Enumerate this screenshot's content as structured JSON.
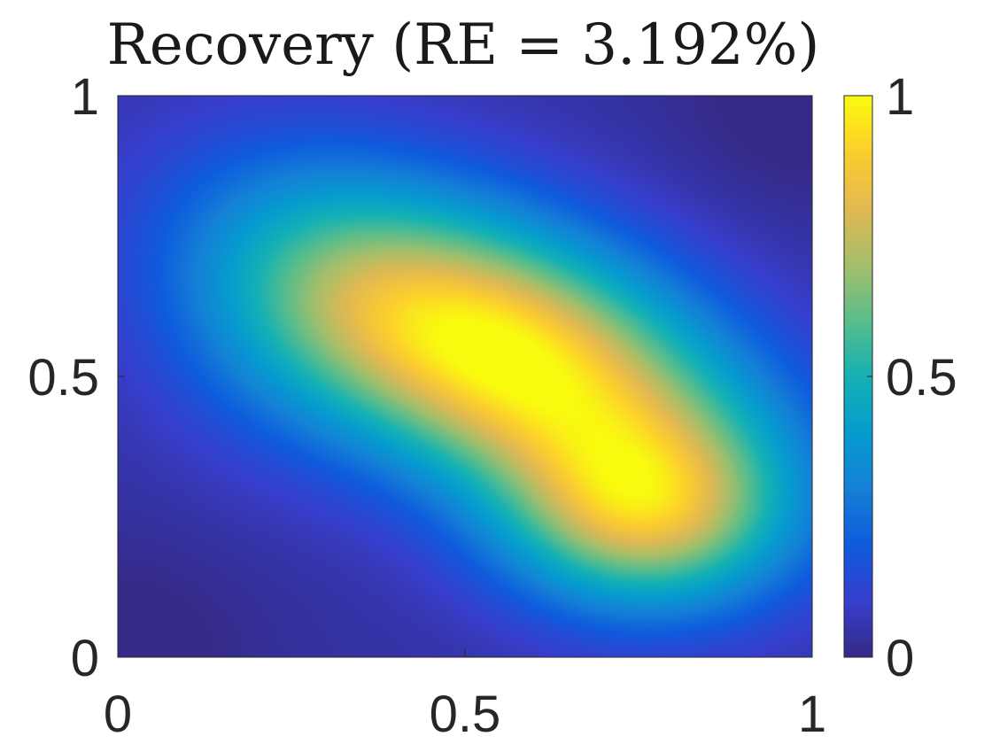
{
  "chart_data": {
    "type": "heatmap",
    "title": "Recovery (RE = 3.192%)",
    "xlabel": "",
    "ylabel": "",
    "xlim": [
      0,
      1
    ],
    "ylim": [
      0,
      1
    ],
    "x_ticks": [
      0,
      0.5,
      1
    ],
    "y_ticks": [
      0,
      0.5,
      1
    ],
    "x_tick_labels": [
      "0",
      "0.5",
      "1"
    ],
    "y_tick_labels": [
      "0",
      "0.5",
      "1"
    ],
    "colormap": "parula",
    "colorbar": {
      "limits": [
        0,
        1
      ],
      "ticks": [
        0,
        0.5,
        1
      ],
      "tick_labels": [
        "0",
        "0.5",
        "1"
      ],
      "placement": "right"
    },
    "grid": false,
    "field_description_points": [
      {
        "x": 0.55,
        "y": 0.55,
        "value": 1.0
      },
      {
        "x": 0.75,
        "y": 0.25,
        "value": 0.88
      },
      {
        "x": 0.0,
        "y": 0.0,
        "value": 0.05
      },
      {
        "x": 1.0,
        "y": 1.0,
        "value": 0.05
      },
      {
        "x": 0.0,
        "y": 1.0,
        "value": 0.28
      },
      {
        "x": 1.0,
        "y": 0.0,
        "value": 0.3
      }
    ]
  }
}
